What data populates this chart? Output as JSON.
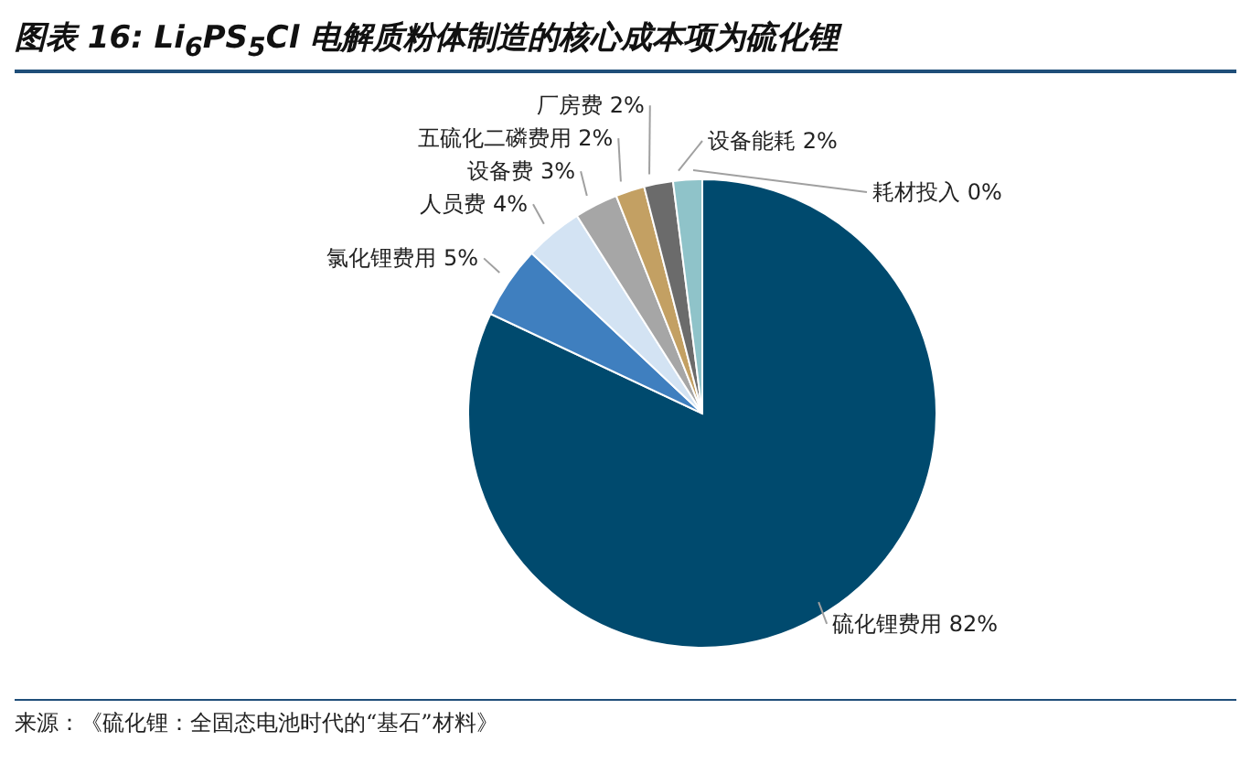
{
  "chart_data": {
    "type": "pie",
    "title": "图表 16: Li$_{6}$PS$_{5}$Cl 电解质粉体制造的核心成本项为硫化锂",
    "categories": [
      "硫化锂费用",
      "氯化锂费用",
      "人员费",
      "设备费",
      "五硫化二磷费用",
      "厂房费",
      "设备能耗",
      "耗材投入"
    ],
    "values": [
      82,
      5,
      4,
      3,
      2,
      2,
      2,
      0
    ],
    "value_labels": [
      "82%",
      "5%",
      "4%",
      "3%",
      "2%",
      "2%",
      "2%",
      "0%"
    ],
    "colors": [
      "#004a6e",
      "#3f7fbf",
      "#d3e3f3",
      "#a6a6a6",
      "#c3a063",
      "#6b6b6b",
      "#8fc3c9",
      "#2e6e8e"
    ],
    "annotations": [
      "来源：《硫化锂：全固态电池时代的“基石”材料》"
    ]
  }
}
